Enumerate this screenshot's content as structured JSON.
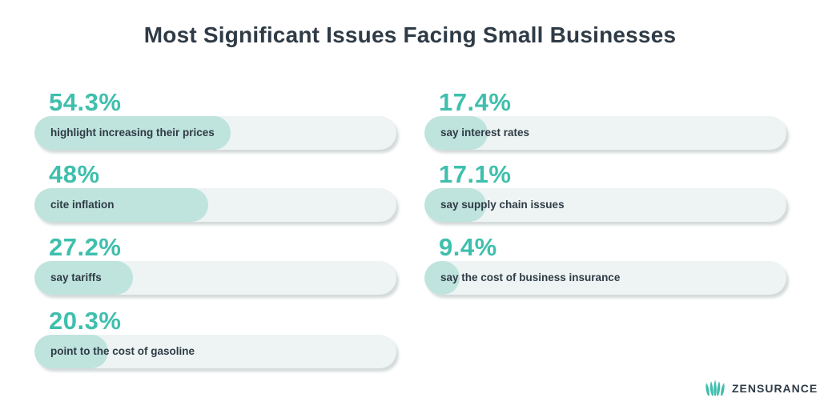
{
  "chart_data": {
    "type": "bar",
    "title": "Most Significant Issues Facing Small Businesses",
    "xlim": [
      0,
      100
    ],
    "items": [
      {
        "value": 54.3,
        "value_label": "54.3%",
        "label": "highlight increasing their prices"
      },
      {
        "value": 48,
        "value_label": "48%",
        "label": "cite inflation"
      },
      {
        "value": 27.2,
        "value_label": "27.2%",
        "label": "say tariffs"
      },
      {
        "value": 20.3,
        "value_label": "20.3%",
        "label": "point to the cost of gasoline"
      },
      {
        "value": 17.4,
        "value_label": "17.4%",
        "label": "say interest rates"
      },
      {
        "value": 17.1,
        "value_label": "17.1%",
        "label": "say supply chain issues"
      },
      {
        "value": 9.4,
        "value_label": "9.4%",
        "label": "say the cost of business insurance"
      }
    ]
  },
  "brand": {
    "name": "ZENSURANCE",
    "icon": "lotus-logo-icon"
  },
  "colors": {
    "accent": "#3fbfad",
    "fill": "#bfe3dd",
    "track": "#edf4f3",
    "text": "#2f3b46"
  }
}
